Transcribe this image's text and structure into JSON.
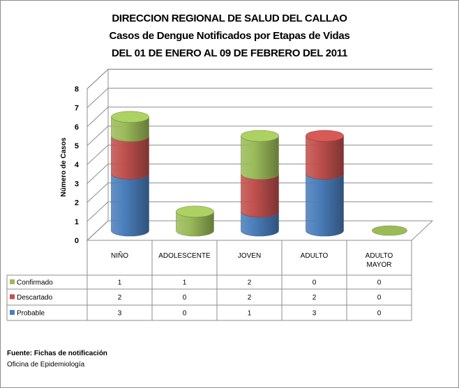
{
  "title": {
    "line1": "DIRECCION REGIONAL DE SALUD DEL CALLAO",
    "line2": "Casos de Dengue Notificados por Etapas de Vidas",
    "line3": "DEL 01 DE ENERO AL 09 DE FEBRERO  DEL 2011"
  },
  "source": {
    "line1": "Fuente:  Fichas de notificación",
    "line2": "Oficina de Epidemiología"
  },
  "colors": {
    "probable": "#4a7ebb",
    "descartado": "#c0504d",
    "confirmado": "#9bbb59"
  },
  "chart_data": {
    "type": "bar",
    "stacked": true,
    "three_d": true,
    "categories": [
      "NIÑO",
      "ADOLESCENTE",
      "JOVEN",
      "ADULTO",
      "ADULTO MAYOR"
    ],
    "series": [
      {
        "name": "Probable",
        "values": [
          3,
          0,
          1,
          3,
          0
        ],
        "color": "#4a7ebb"
      },
      {
        "name": "Descartado",
        "values": [
          2,
          0,
          2,
          2,
          0
        ],
        "color": "#c0504d"
      },
      {
        "name": "Confirmado",
        "values": [
          1,
          1,
          2,
          0,
          0
        ],
        "color": "#9bbb59"
      }
    ],
    "ylabel": "Número de Casos",
    "ylim": [
      0,
      8
    ],
    "yticks": [
      0,
      1,
      2,
      3,
      4,
      5,
      6,
      7,
      8
    ],
    "grid": true,
    "legend": "data-table"
  }
}
